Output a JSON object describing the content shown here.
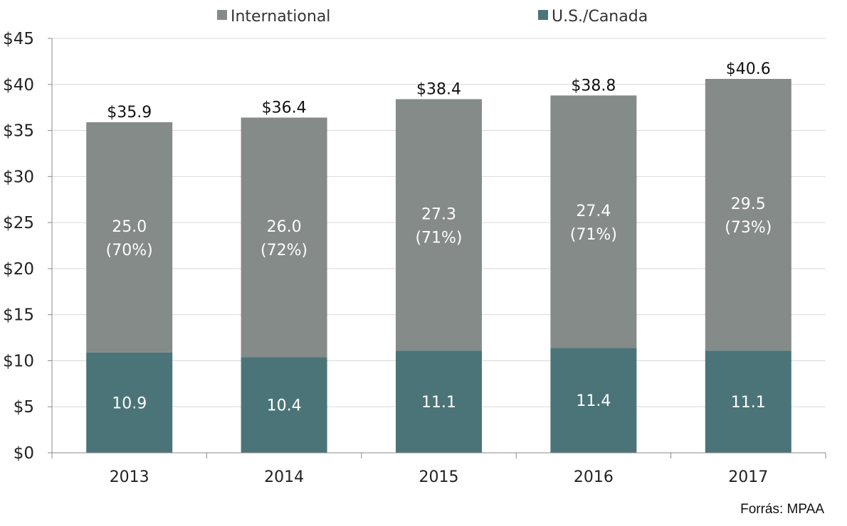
{
  "chart_data": {
    "type": "bar",
    "stacked": true,
    "categories": [
      "2013",
      "2014",
      "2015",
      "2016",
      "2017"
    ],
    "series": [
      {
        "name": "U.S./Canada",
        "color": "#4b7478",
        "values": [
          10.9,
          10.4,
          11.1,
          11.4,
          11.1
        ],
        "labels": [
          "10.9",
          "10.4",
          "11.1",
          "11.4",
          "11.1"
        ]
      },
      {
        "name": "International",
        "color": "#858b89",
        "values": [
          25.0,
          26.0,
          27.3,
          27.4,
          29.5
        ],
        "labels": [
          "25.0",
          "26.0",
          "27.3",
          "27.4",
          "29.5"
        ],
        "share_labels": [
          "(70%)",
          "(72%)",
          "(71%)",
          "(71%)",
          "(73%)"
        ]
      }
    ],
    "totals": [
      35.9,
      36.4,
      38.4,
      38.8,
      40.6
    ],
    "total_labels": [
      "$35.9",
      "$36.4",
      "$38.4",
      "$38.8",
      "$40.6"
    ],
    "ylim": [
      0,
      45
    ],
    "yticks": [
      0,
      5,
      10,
      15,
      20,
      25,
      30,
      35,
      40,
      45
    ],
    "ytick_labels": [
      "$0",
      "$5",
      "$10",
      "$15",
      "$20",
      "$25",
      "$30",
      "$35",
      "$40",
      "$45"
    ],
    "grid": true,
    "legend_position": "top-center",
    "legend": [
      "International",
      "U.S./Canada"
    ]
  },
  "source": "Forrás: MPAA"
}
